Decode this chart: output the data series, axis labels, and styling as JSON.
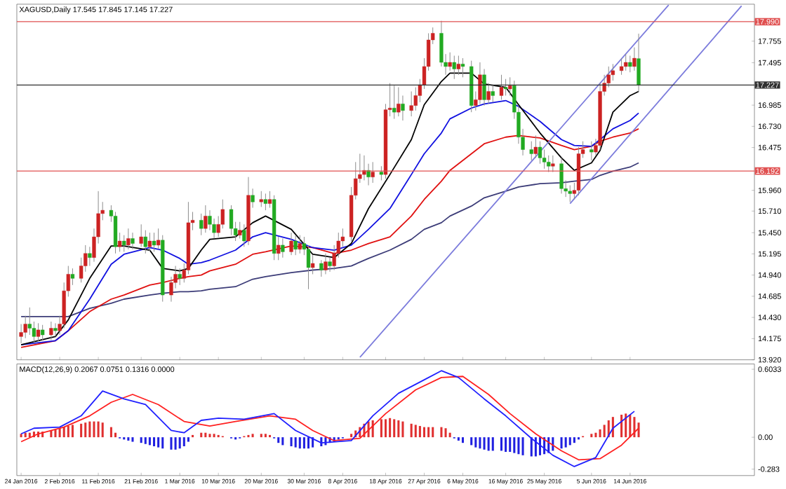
{
  "chart_data": [
    {
      "type": "candlestick",
      "title": "XAGUSD,Daily 17.545 17.845 17.145 17.227",
      "x": [
        "2016-01-24",
        "2016-01-25",
        "2016-01-26",
        "2016-01-27",
        "2016-01-28",
        "2016-01-29",
        "2016-01-31",
        "2016-02-01",
        "2016-02-02",
        "2016-02-03",
        "2016-02-04",
        "2016-02-05",
        "2016-02-07",
        "2016-02-08",
        "2016-02-09",
        "2016-02-10",
        "2016-02-11",
        "2016-02-12",
        "2016-02-14",
        "2016-02-15",
        "2016-02-16",
        "2016-02-17",
        "2016-02-18",
        "2016-02-19",
        "2016-02-21",
        "2016-02-22",
        "2016-02-23",
        "2016-02-24",
        "2016-02-25",
        "2016-02-26",
        "2016-02-28",
        "2016-02-29",
        "2016-03-01",
        "2016-03-02",
        "2016-03-03",
        "2016-03-04",
        "2016-03-06",
        "2016-03-07",
        "2016-03-08",
        "2016-03-09",
        "2016-03-10",
        "2016-03-11",
        "2016-03-13",
        "2016-03-14",
        "2016-03-15",
        "2016-03-16",
        "2016-03-17",
        "2016-03-18",
        "2016-03-20",
        "2016-03-21",
        "2016-03-22",
        "2016-03-23",
        "2016-03-24",
        "2016-03-25",
        "2016-03-27",
        "2016-03-28",
        "2016-03-29",
        "2016-03-30",
        "2016-03-31",
        "2016-04-01",
        "2016-04-03",
        "2016-04-04",
        "2016-04-05",
        "2016-04-06",
        "2016-04-07",
        "2016-04-08",
        "2016-04-10",
        "2016-04-11",
        "2016-04-12",
        "2016-04-13",
        "2016-04-14",
        "2016-04-15",
        "2016-04-17",
        "2016-04-18",
        "2016-04-19",
        "2016-04-20",
        "2016-04-21",
        "2016-04-22",
        "2016-04-24",
        "2016-04-25",
        "2016-04-26",
        "2016-04-27",
        "2016-04-28",
        "2016-04-29",
        "2016-05-01",
        "2016-05-02",
        "2016-05-03",
        "2016-05-04",
        "2016-05-05",
        "2016-05-06",
        "2016-05-08",
        "2016-05-09",
        "2016-05-10",
        "2016-05-11",
        "2016-05-12",
        "2016-05-13",
        "2016-05-15",
        "2016-05-16",
        "2016-05-17",
        "2016-05-18",
        "2016-05-19",
        "2016-05-20",
        "2016-05-22",
        "2016-05-23",
        "2016-05-24",
        "2016-05-25",
        "2016-05-26",
        "2016-05-27",
        "2016-05-29",
        "2016-05-30",
        "2016-05-31",
        "2016-06-01",
        "2016-06-02",
        "2016-06-03",
        "2016-06-05",
        "2016-06-06",
        "2016-06-07",
        "2016-06-08",
        "2016-06-09",
        "2016-06-10",
        "2016-06-12",
        "2016-06-13",
        "2016-06-14",
        "2016-06-15",
        "2016-06-16"
      ],
      "ohlc": [
        [
          14.2,
          14.35,
          14.12,
          14.25
        ],
        [
          14.25,
          14.45,
          14.18,
          14.35
        ],
        [
          14.35,
          14.55,
          14.22,
          14.3
        ],
        [
          14.3,
          14.38,
          14.12,
          14.2
        ],
        [
          14.2,
          14.36,
          14.14,
          14.28
        ],
        [
          14.28,
          14.34,
          14.15,
          14.22
        ],
        [
          14.22,
          14.38,
          14.16,
          14.3
        ],
        [
          14.3,
          14.36,
          14.2,
          14.27
        ],
        [
          14.27,
          14.45,
          14.22,
          14.35
        ],
        [
          14.35,
          14.85,
          14.3,
          14.75
        ],
        [
          14.75,
          15.05,
          14.68,
          14.95
        ],
        [
          14.95,
          15.02,
          14.82,
          14.9
        ],
        [
          14.9,
          15.15,
          14.85,
          15.05
        ],
        [
          15.05,
          15.3,
          14.98,
          15.2
        ],
        [
          15.2,
          15.28,
          15.05,
          15.15
        ],
        [
          15.15,
          15.5,
          15.1,
          15.4
        ],
        [
          15.4,
          15.95,
          15.32,
          15.68
        ],
        [
          15.68,
          15.82,
          15.6,
          15.72
        ],
        [
          15.72,
          15.78,
          15.58,
          15.65
        ],
        [
          15.65,
          15.7,
          15.2,
          15.28
        ],
        [
          15.28,
          15.45,
          15.22,
          15.35
        ],
        [
          15.35,
          15.42,
          15.22,
          15.3
        ],
        [
          15.3,
          15.5,
          15.25,
          15.38
        ],
        [
          15.38,
          15.45,
          15.25,
          15.32
        ],
        [
          15.32,
          15.55,
          15.28,
          15.4
        ],
        [
          15.4,
          15.48,
          15.2,
          15.28
        ],
        [
          15.28,
          15.45,
          15.22,
          15.35
        ],
        [
          15.35,
          15.45,
          15.22,
          15.3
        ],
        [
          15.3,
          15.5,
          15.25,
          15.36
        ],
        [
          15.36,
          15.42,
          14.62,
          14.7
        ],
        [
          14.7,
          14.92,
          14.62,
          14.85
        ],
        [
          14.85,
          15.05,
          14.78,
          14.95
        ],
        [
          14.95,
          15.02,
          14.82,
          14.9
        ],
        [
          14.9,
          15.08,
          14.85,
          15.0
        ],
        [
          15.0,
          15.82,
          14.95,
          15.57
        ],
        [
          15.57,
          15.7,
          15.48,
          15.6
        ],
        [
          15.6,
          15.68,
          15.42,
          15.5
        ],
        [
          15.5,
          15.78,
          15.45,
          15.65
        ],
        [
          15.65,
          15.72,
          15.48,
          15.55
        ],
        [
          15.55,
          15.62,
          15.38,
          15.45
        ],
        [
          15.45,
          15.65,
          15.4,
          15.55
        ],
        [
          15.55,
          15.85,
          15.5,
          15.73
        ],
        [
          15.73,
          15.78,
          15.42,
          15.5
        ],
        [
          15.5,
          15.58,
          15.35,
          15.42
        ],
        [
          15.42,
          15.58,
          15.38,
          15.48
        ],
        [
          15.48,
          15.55,
          15.28,
          15.35
        ],
        [
          15.35,
          16.12,
          15.3,
          15.9
        ],
        [
          15.9,
          15.98,
          15.75,
          15.82
        ],
        [
          15.82,
          15.95,
          15.76,
          15.85
        ],
        [
          15.85,
          15.92,
          15.72,
          15.8
        ],
        [
          15.8,
          15.95,
          15.75,
          15.85
        ],
        [
          15.85,
          15.9,
          15.12,
          15.2
        ],
        [
          15.2,
          15.4,
          15.12,
          15.3
        ],
        [
          15.3,
          15.38,
          15.15,
          15.22
        ],
        [
          15.22,
          15.45,
          15.18,
          15.35
        ],
        [
          15.35,
          15.42,
          15.18,
          15.25
        ],
        [
          15.25,
          15.42,
          15.2,
          15.32
        ],
        [
          15.32,
          15.4,
          15.18,
          15.25
        ],
        [
          15.25,
          15.3,
          14.77,
          15.03
        ],
        [
          15.03,
          15.18,
          14.95,
          15.08
        ],
        [
          15.08,
          15.12,
          14.92,
          15.0
        ],
        [
          15.0,
          15.2,
          14.95,
          15.1
        ],
        [
          15.1,
          15.15,
          14.98,
          15.05
        ],
        [
          15.05,
          15.3,
          15.0,
          15.2
        ],
        [
          15.2,
          15.45,
          15.15,
          15.35
        ],
        [
          15.35,
          15.5,
          15.28,
          15.4
        ],
        [
          15.4,
          16.0,
          15.35,
          15.9
        ],
        [
          15.9,
          16.3,
          15.85,
          16.1
        ],
        [
          16.1,
          16.4,
          16.05,
          16.15
        ],
        [
          16.15,
          16.38,
          16.08,
          16.2
        ],
        [
          16.2,
          16.28,
          16.02,
          16.12
        ],
        [
          16.12,
          16.3,
          16.05,
          16.18
        ],
        [
          16.18,
          16.25,
          16.08,
          16.15
        ],
        [
          16.15,
          17.0,
          16.1,
          16.93
        ],
        [
          16.93,
          17.25,
          16.85,
          16.95
        ],
        [
          16.95,
          17.22,
          16.82,
          16.9
        ],
        [
          16.9,
          17.2,
          16.85,
          17.0
        ],
        [
          17.0,
          17.1,
          16.8,
          16.92
        ],
        [
          16.92,
          17.15,
          16.85,
          16.98
        ],
        [
          16.98,
          17.2,
          16.92,
          17.1
        ],
        [
          17.1,
          17.3,
          17.02,
          17.23
        ],
        [
          17.23,
          17.55,
          17.18,
          17.45
        ],
        [
          17.45,
          17.85,
          17.4,
          17.77
        ],
        [
          17.77,
          17.92,
          17.72,
          17.85
        ],
        [
          17.85,
          18.0,
          17.45,
          17.5
        ],
        [
          17.5,
          17.6,
          17.35,
          17.45
        ],
        [
          17.45,
          17.62,
          17.4,
          17.5
        ],
        [
          17.5,
          17.58,
          17.3,
          17.42
        ],
        [
          17.42,
          17.58,
          17.35,
          17.48
        ],
        [
          17.48,
          17.55,
          17.32,
          17.45
        ],
        [
          17.45,
          17.52,
          16.9,
          16.98
        ],
        [
          16.98,
          17.15,
          16.92,
          17.05
        ],
        [
          17.05,
          17.5,
          17.0,
          17.35
        ],
        [
          17.35,
          17.42,
          16.98,
          17.05
        ],
        [
          17.05,
          17.25,
          17.0,
          17.15
        ],
        [
          17.15,
          17.22,
          17.02,
          17.1
        ],
        [
          17.1,
          17.35,
          17.05,
          17.2
        ],
        [
          17.2,
          17.3,
          17.1,
          17.18
        ],
        [
          17.18,
          17.32,
          17.1,
          17.22
        ],
        [
          17.22,
          17.28,
          16.82,
          16.9
        ],
        [
          16.9,
          16.98,
          16.52,
          16.6
        ],
        [
          16.6,
          16.7,
          16.38,
          16.45
        ],
        [
          16.45,
          16.55,
          16.32,
          16.4
        ],
        [
          16.4,
          16.62,
          16.35,
          16.48
        ],
        [
          16.48,
          16.55,
          16.28,
          16.35
        ],
        [
          16.35,
          16.45,
          16.22,
          16.3
        ],
        [
          16.3,
          16.38,
          16.18,
          16.25
        ],
        [
          16.25,
          16.38,
          16.18,
          16.28
        ],
        [
          16.28,
          16.35,
          15.92,
          15.98
        ],
        [
          15.98,
          16.08,
          15.88,
          15.95
        ],
        [
          15.95,
          16.02,
          15.82,
          15.92
        ],
        [
          15.92,
          16.05,
          15.85,
          15.96
        ],
        [
          15.96,
          16.48,
          15.9,
          16.4
        ],
        [
          16.4,
          16.55,
          16.35,
          16.45
        ],
        [
          16.45,
          16.55,
          16.32,
          16.42
        ],
        [
          16.42,
          16.58,
          16.38,
          16.5
        ],
        [
          16.5,
          17.25,
          16.45,
          17.15
        ],
        [
          17.15,
          17.35,
          17.1,
          17.25
        ],
        [
          17.25,
          17.45,
          17.2,
          17.35
        ],
        [
          17.35,
          17.48,
          17.28,
          17.4
        ],
        [
          17.4,
          17.55,
          17.35,
          17.45
        ],
        [
          17.45,
          17.6,
          17.4,
          17.5
        ],
        [
          17.5,
          17.58,
          17.38,
          17.45
        ],
        [
          17.45,
          17.68,
          17.4,
          17.55
        ],
        [
          17.545,
          17.845,
          17.145,
          17.227
        ]
      ],
      "colors": [
        "#cc2222",
        "#cc2222",
        "#22aa22",
        "#22aa22",
        "#cc2222",
        "#22aa22",
        "#cc2222",
        "#22aa22",
        "#cc2222",
        "#cc2222",
        "#cc2222",
        "#22aa22",
        "#cc2222",
        "#cc2222",
        "#22aa22",
        "#cc2222",
        "#cc2222",
        "#cc2222",
        "#22aa22",
        "#22aa22",
        "#cc2222",
        "#22aa22",
        "#cc2222",
        "#22aa22",
        "#cc2222",
        "#22aa22",
        "#cc2222",
        "#22aa22",
        "#cc2222",
        "#22aa22",
        "#cc2222",
        "#cc2222",
        "#22aa22",
        "#cc2222",
        "#cc2222",
        "#cc2222",
        "#22aa22",
        "#cc2222",
        "#22aa22",
        "#22aa22",
        "#cc2222",
        "#cc2222",
        "#22aa22",
        "#22aa22",
        "#cc2222",
        "#22aa22",
        "#cc2222",
        "#22aa22",
        "#cc2222",
        "#22aa22",
        "#cc2222",
        "#22aa22",
        "#cc2222",
        "#22aa22",
        "#cc2222",
        "#22aa22",
        "#cc2222",
        "#22aa22",
        "#22aa22",
        "#cc2222",
        "#22aa22",
        "#cc2222",
        "#22aa22",
        "#cc2222",
        "#cc2222",
        "#cc2222",
        "#cc2222",
        "#cc2222",
        "#cc2222",
        "#cc2222",
        "#22aa22",
        "#cc2222",
        "#22aa22",
        "#cc2222",
        "#cc2222",
        "#22aa22",
        "#cc2222",
        "#22aa22",
        "#cc2222",
        "#cc2222",
        "#cc2222",
        "#cc2222",
        "#cc2222",
        "#cc2222",
        "#22aa22",
        "#22aa22",
        "#cc2222",
        "#22aa22",
        "#cc2222",
        "#22aa22",
        "#22aa22",
        "#cc2222",
        "#cc2222",
        "#22aa22",
        "#cc2222",
        "#22aa22",
        "#cc2222",
        "#22aa22",
        "#cc2222",
        "#22aa22",
        "#22aa22",
        "#22aa22",
        "#22aa22",
        "#cc2222",
        "#22aa22",
        "#22aa22",
        "#22aa22",
        "#cc2222",
        "#22aa22",
        "#22aa22",
        "#22aa22",
        "#cc2222",
        "#cc2222",
        "#cc2222",
        "#22aa22",
        "#cc2222",
        "#cc2222",
        "#cc2222",
        "#cc2222",
        "#cc2222",
        "#cc2222",
        "#cc2222",
        "#22aa22",
        "#cc2222",
        "#22aa22"
      ],
      "series": [
        {
          "type": "line",
          "color": "#3c3c78",
          "x": [
            "2016-01-24",
            "2016-02-01",
            "2016-02-04",
            "2016-02-09",
            "2016-02-14",
            "2016-02-17",
            "2016-02-23",
            "2016-02-26",
            "2016-03-01",
            "2016-03-03",
            "2016-03-06",
            "2016-03-08",
            "2016-03-14",
            "2016-03-18",
            "2016-03-21",
            "2016-03-27",
            "2016-04-01",
            "2016-04-06",
            "2016-04-10",
            "2016-04-14",
            "2016-04-19",
            "2016-04-24",
            "2016-04-27",
            "2016-05-01",
            "2016-05-03",
            "2016-05-08",
            "2016-05-11",
            "2016-05-16",
            "2016-05-19",
            "2016-05-24",
            "2016-05-29",
            "2016-06-01",
            "2016-06-05",
            "2016-06-07",
            "2016-06-10",
            "2016-06-14",
            "2016-06-16"
          ],
          "values": [
            14.44,
            14.44,
            14.44,
            14.54,
            14.6,
            14.65,
            14.7,
            14.72,
            14.74,
            14.74,
            14.75,
            14.77,
            14.8,
            14.89,
            14.92,
            14.97,
            15.0,
            15.02,
            15.05,
            15.14,
            15.24,
            15.37,
            15.49,
            15.57,
            15.65,
            15.77,
            15.87,
            15.95,
            16.0,
            16.04,
            16.05,
            16.07,
            16.09,
            16.14,
            16.19,
            16.24,
            16.29
          ]
        },
        {
          "type": "line",
          "color": "#e01010",
          "x": [
            "2016-01-24",
            "2016-02-01",
            "2016-02-04",
            "2016-02-09",
            "2016-02-14",
            "2016-02-17",
            "2016-02-23",
            "2016-02-26",
            "2016-03-01",
            "2016-03-03",
            "2016-03-06",
            "2016-03-08",
            "2016-03-14",
            "2016-03-18",
            "2016-03-21",
            "2016-03-27",
            "2016-04-01",
            "2016-04-06",
            "2016-04-10",
            "2016-04-14",
            "2016-04-19",
            "2016-04-24",
            "2016-04-27",
            "2016-05-01",
            "2016-05-03",
            "2016-05-08",
            "2016-05-11",
            "2016-05-16",
            "2016-05-19",
            "2016-05-24",
            "2016-05-29",
            "2016-06-01",
            "2016-06-05",
            "2016-06-07",
            "2016-06-10",
            "2016-06-14",
            "2016-06-16"
          ],
          "values": [
            14.07,
            14.15,
            14.27,
            14.5,
            14.65,
            14.7,
            14.82,
            14.85,
            14.9,
            14.92,
            14.94,
            14.99,
            15.07,
            15.19,
            15.22,
            15.29,
            15.27,
            15.2,
            15.24,
            15.32,
            15.4,
            15.65,
            15.85,
            16.07,
            16.2,
            16.4,
            16.52,
            16.6,
            16.62,
            16.59,
            16.5,
            16.45,
            16.49,
            16.55,
            16.6,
            16.65,
            16.7
          ]
        },
        {
          "type": "line",
          "color": "#1010e0",
          "x": [
            "2016-01-24",
            "2016-02-01",
            "2016-02-04",
            "2016-02-09",
            "2016-02-14",
            "2016-02-17",
            "2016-02-23",
            "2016-02-26",
            "2016-03-01",
            "2016-03-03",
            "2016-03-06",
            "2016-03-08",
            "2016-03-14",
            "2016-03-18",
            "2016-03-21",
            "2016-03-27",
            "2016-04-01",
            "2016-04-06",
            "2016-04-10",
            "2016-04-14",
            "2016-04-19",
            "2016-04-24",
            "2016-04-27",
            "2016-05-01",
            "2016-05-03",
            "2016-05-08",
            "2016-05-11",
            "2016-05-16",
            "2016-05-19",
            "2016-05-24",
            "2016-05-29",
            "2016-06-01",
            "2016-06-05",
            "2016-06-07",
            "2016-06-10",
            "2016-06-14",
            "2016-06-16"
          ],
          "values": [
            14.1,
            14.15,
            14.27,
            14.65,
            15.07,
            15.19,
            15.27,
            15.24,
            15.14,
            15.07,
            15.09,
            15.12,
            15.24,
            15.4,
            15.45,
            15.37,
            15.27,
            15.24,
            15.3,
            15.49,
            15.74,
            16.15,
            16.4,
            16.65,
            16.82,
            16.95,
            17.0,
            17.04,
            16.97,
            16.79,
            16.57,
            16.5,
            16.49,
            16.57,
            16.7,
            16.8,
            16.89
          ]
        },
        {
          "type": "line",
          "color": "#000000",
          "x": [
            "2016-01-24",
            "2016-02-01",
            "2016-02-04",
            "2016-02-09",
            "2016-02-14",
            "2016-02-17",
            "2016-02-23",
            "2016-02-26",
            "2016-03-01",
            "2016-03-03",
            "2016-03-06",
            "2016-03-08",
            "2016-03-14",
            "2016-03-18",
            "2016-03-21",
            "2016-03-27",
            "2016-04-01",
            "2016-04-06",
            "2016-04-10",
            "2016-04-14",
            "2016-04-19",
            "2016-04-24",
            "2016-04-27",
            "2016-05-01",
            "2016-05-03",
            "2016-05-08",
            "2016-05-11",
            "2016-05-16",
            "2016-05-19",
            "2016-05-24",
            "2016-05-29",
            "2016-06-01",
            "2016-06-05",
            "2016-06-07",
            "2016-06-10",
            "2016-06-14",
            "2016-06-16"
          ],
          "values": [
            14.1,
            14.2,
            14.4,
            14.9,
            15.29,
            15.29,
            15.24,
            15.02,
            14.99,
            15.02,
            15.24,
            15.37,
            15.4,
            15.57,
            15.65,
            15.49,
            15.19,
            15.15,
            15.32,
            15.74,
            16.15,
            16.57,
            16.99,
            17.27,
            17.37,
            17.37,
            17.24,
            17.2,
            16.99,
            16.65,
            16.35,
            16.2,
            16.29,
            16.44,
            16.9,
            17.1,
            17.15
          ]
        },
        {
          "type": "line",
          "color": "#7b7bdc",
          "x": [
            "2016-04-12",
            "2016-06-23"
          ],
          "values": [
            13.95,
            18.19
          ]
        },
        {
          "type": "line",
          "color": "#7b7bdc",
          "x": [
            "2016-05-31",
            "2016-07-10"
          ],
          "values": [
            15.8,
            18.18
          ]
        }
      ],
      "ref_lines": [
        {
          "axis": "y",
          "value": 17.99,
          "label": "17.990",
          "color": "#e05050"
        },
        {
          "axis": "y",
          "value": 17.227,
          "label": "17.227",
          "color": "#303030"
        },
        {
          "axis": "y",
          "value": 16.192,
          "label": "16.192",
          "color": "#e05050"
        }
      ],
      "xlim": [
        "2016-01-23",
        "2016-07-13"
      ],
      "xticks": [
        {
          "value": "2016-01-24",
          "label": null
        },
        {
          "value": "2016-02-02",
          "label": null
        },
        {
          "value": "2016-02-11",
          "label": null
        },
        {
          "value": "2016-02-21",
          "label": null
        },
        {
          "value": "2016-03-01",
          "label": null
        },
        {
          "value": "2016-03-10",
          "label": null
        },
        {
          "value": "2016-03-20",
          "label": null
        },
        {
          "value": "2016-03-30",
          "label": null
        },
        {
          "value": "2016-04-08",
          "label": null
        },
        {
          "value": "2016-04-18",
          "label": null
        },
        {
          "value": "2016-04-27",
          "label": null
        },
        {
          "value": "2016-05-06",
          "label": null
        },
        {
          "value": "2016-05-16",
          "label": null
        },
        {
          "value": "2016-05-25",
          "label": null
        },
        {
          "value": "2016-06-05",
          "label": null
        },
        {
          "value": "2016-06-14",
          "label": null
        }
      ],
      "ylim": [
        13.92,
        18.2
      ],
      "yticks": [
        {
          "value": 13.92,
          "label": "13.920"
        },
        14.175,
        {
          "value": 14.43,
          "label": "14.430"
        },
        14.685,
        {
          "value": 14.94,
          "label": "14.940"
        },
        15.195,
        {
          "value": 15.45,
          "label": "15.450"
        },
        {
          "value": 15.71,
          "label": "15.710"
        },
        {
          "value": 15.96,
          "label": "15.960"
        },
        16.475,
        {
          "value": 16.73,
          "label": "16.730"
        },
        16.985,
        17.495,
        17.755
      ],
      "tick_labels": "y"
    },
    {
      "type": "bar",
      "title": "MACD(12,26,9) 0.2067 0.0751 0.1316 0.0000",
      "x": [
        "2016-01-24",
        "2016-01-25",
        "2016-01-26",
        "2016-01-27",
        "2016-01-28",
        "2016-01-29",
        "2016-01-31",
        "2016-02-01",
        "2016-02-02",
        "2016-02-03",
        "2016-02-04",
        "2016-02-05",
        "2016-02-07",
        "2016-02-08",
        "2016-02-09",
        "2016-02-10",
        "2016-02-11",
        "2016-02-12",
        "2016-02-14",
        "2016-02-15",
        "2016-02-16",
        "2016-02-17",
        "2016-02-18",
        "2016-02-19",
        "2016-02-21",
        "2016-02-22",
        "2016-02-23",
        "2016-02-24",
        "2016-02-25",
        "2016-02-26",
        "2016-02-28",
        "2016-02-29",
        "2016-03-01",
        "2016-03-02",
        "2016-03-03",
        "2016-03-04",
        "2016-03-06",
        "2016-03-07",
        "2016-03-08",
        "2016-03-09",
        "2016-03-10",
        "2016-03-11",
        "2016-03-13",
        "2016-03-14",
        "2016-03-15",
        "2016-03-16",
        "2016-03-17",
        "2016-03-18",
        "2016-03-20",
        "2016-03-21",
        "2016-03-22",
        "2016-03-23",
        "2016-03-24",
        "2016-03-25",
        "2016-03-27",
        "2016-03-28",
        "2016-03-29",
        "2016-03-30",
        "2016-03-31",
        "2016-04-01",
        "2016-04-03",
        "2016-04-04",
        "2016-04-05",
        "2016-04-06",
        "2016-04-07",
        "2016-04-08",
        "2016-04-10",
        "2016-04-11",
        "2016-04-12",
        "2016-04-13",
        "2016-04-14",
        "2016-04-15",
        "2016-04-17",
        "2016-04-18",
        "2016-04-19",
        "2016-04-20",
        "2016-04-21",
        "2016-04-22",
        "2016-04-24",
        "2016-04-25",
        "2016-04-26",
        "2016-04-27",
        "2016-04-28",
        "2016-04-29",
        "2016-05-01",
        "2016-05-02",
        "2016-05-03",
        "2016-05-04",
        "2016-05-05",
        "2016-05-06",
        "2016-05-08",
        "2016-05-09",
        "2016-05-10",
        "2016-05-11",
        "2016-05-12",
        "2016-05-13",
        "2016-05-15",
        "2016-05-16",
        "2016-05-17",
        "2016-05-18",
        "2016-05-19",
        "2016-05-20",
        "2016-05-22",
        "2016-05-23",
        "2016-05-24",
        "2016-05-25",
        "2016-05-26",
        "2016-05-27",
        "2016-05-29",
        "2016-05-30",
        "2016-05-31",
        "2016-06-01",
        "2016-06-02",
        "2016-06-03",
        "2016-06-05",
        "2016-06-06",
        "2016-06-07",
        "2016-06-08",
        "2016-06-09",
        "2016-06-10",
        "2016-06-12",
        "2016-06-13",
        "2016-06-14",
        "2016-06-15",
        "2016-06-16"
      ],
      "series": [
        {
          "type": "bar",
          "values": [
            0.03,
            0.04,
            0.04,
            0.05,
            0.05,
            0.05,
            0.06,
            0.07,
            0.08,
            0.09,
            0.1,
            0.11,
            0.12,
            0.13,
            0.14,
            0.14,
            0.14,
            0.13,
            0.09,
            0.04,
            -0.01,
            -0.02,
            -0.03,
            -0.04,
            -0.05,
            -0.06,
            -0.07,
            -0.08,
            -0.09,
            -0.1,
            -0.11,
            -0.11,
            -0.1,
            -0.08,
            -0.04,
            0.02,
            0.04,
            0.04,
            0.03,
            0.03,
            0.02,
            0.01,
            -0.01,
            -0.02,
            -0.01,
            0.01,
            0.02,
            0.03,
            0.03,
            0.03,
            0.02,
            -0.01,
            -0.05,
            -0.07,
            -0.08,
            -0.09,
            -0.1,
            -0.1,
            -0.1,
            -0.09,
            -0.08,
            -0.07,
            -0.05,
            -0.04,
            -0.02,
            -0.01,
            0.03,
            0.06,
            0.09,
            0.12,
            0.14,
            0.15,
            0.16,
            0.16,
            0.17,
            0.16,
            0.15,
            0.14,
            0.12,
            0.11,
            0.1,
            0.09,
            0.09,
            0.09,
            0.09,
            0.08,
            0.04,
            -0.01,
            -0.03,
            -0.05,
            -0.07,
            -0.09,
            -0.1,
            -0.11,
            -0.12,
            -0.12,
            -0.12,
            -0.13,
            -0.13,
            -0.14,
            -0.15,
            -0.16,
            -0.17,
            -0.17,
            -0.16,
            -0.15,
            -0.14,
            -0.12,
            -0.1,
            -0.09,
            -0.07,
            -0.05,
            -0.02,
            0.01,
            0.03,
            0.04,
            0.07,
            0.11,
            0.15,
            0.18,
            0.2,
            0.21,
            0.2,
            0.18,
            0.13
          ],
          "colors": [
            "#e03030",
            "#e03030",
            "#e03030",
            "#e03030",
            "#e03030",
            "#e03030",
            "#e03030",
            "#e03030",
            "#e03030",
            "#e03030",
            "#e03030",
            "#e03030",
            "#e03030",
            "#e03030",
            "#e03030",
            "#e03030",
            "#e03030",
            "#e03030",
            "#e03030",
            "#e03030",
            "#2020e0",
            "#2020e0",
            "#2020e0",
            "#2020e0",
            "#2020e0",
            "#2020e0",
            "#2020e0",
            "#2020e0",
            "#2020e0",
            "#2020e0",
            "#2020e0",
            "#2020e0",
            "#2020e0",
            "#2020e0",
            "#2020e0",
            "#e03030",
            "#e03030",
            "#e03030",
            "#e03030",
            "#e03030",
            "#e03030",
            "#e03030",
            "#2020e0",
            "#2020e0",
            "#2020e0",
            "#e03030",
            "#e03030",
            "#e03030",
            "#e03030",
            "#e03030",
            "#e03030",
            "#2020e0",
            "#2020e0",
            "#2020e0",
            "#2020e0",
            "#2020e0",
            "#2020e0",
            "#2020e0",
            "#2020e0",
            "#2020e0",
            "#2020e0",
            "#2020e0",
            "#2020e0",
            "#2020e0",
            "#2020e0",
            "#2020e0",
            "#e03030",
            "#e03030",
            "#e03030",
            "#e03030",
            "#e03030",
            "#e03030",
            "#e03030",
            "#e03030",
            "#e03030",
            "#e03030",
            "#e03030",
            "#e03030",
            "#e03030",
            "#e03030",
            "#e03030",
            "#e03030",
            "#e03030",
            "#e03030",
            "#e03030",
            "#e03030",
            "#e03030",
            "#2020e0",
            "#2020e0",
            "#2020e0",
            "#2020e0",
            "#2020e0",
            "#2020e0",
            "#2020e0",
            "#2020e0",
            "#2020e0",
            "#2020e0",
            "#2020e0",
            "#2020e0",
            "#2020e0",
            "#2020e0",
            "#2020e0",
            "#2020e0",
            "#2020e0",
            "#2020e0",
            "#2020e0",
            "#2020e0",
            "#2020e0",
            "#2020e0",
            "#2020e0",
            "#2020e0",
            "#2020e0",
            "#2020e0",
            "#e03030",
            "#e03030",
            "#e03030",
            "#e03030",
            "#e03030",
            "#e03030",
            "#e03030",
            "#e03030",
            "#e03030",
            "#e03030",
            "#e03030",
            "#e03030"
          ]
        },
        {
          "type": "line",
          "color": "#ff2020",
          "x": [
            "2016-01-24",
            "2016-01-28",
            "2016-02-03",
            "2016-02-09",
            "2016-02-14",
            "2016-02-19",
            "2016-02-25",
            "2016-03-02",
            "2016-03-08",
            "2016-03-14",
            "2016-03-22",
            "2016-03-28",
            "2016-04-01",
            "2016-04-06",
            "2016-04-12",
            "2016-04-18",
            "2016-04-25",
            "2016-05-01",
            "2016-05-06",
            "2016-05-12",
            "2016-05-17",
            "2016-05-23",
            "2016-05-29",
            "2016-06-02",
            "2016-06-07",
            "2016-06-12",
            "2016-06-16"
          ],
          "values": [
            -0.04,
            0.03,
            0.09,
            0.19,
            0.31,
            0.38,
            0.29,
            0.14,
            0.1,
            0.14,
            0.19,
            0.16,
            0.06,
            -0.03,
            -0.01,
            0.21,
            0.42,
            0.53,
            0.54,
            0.38,
            0.21,
            0.03,
            -0.12,
            -0.2,
            -0.19,
            -0.07,
            0.08
          ]
        },
        {
          "type": "line",
          "color": "#2020ff",
          "x": [
            "2016-01-24",
            "2016-01-27",
            "2016-02-02",
            "2016-02-07",
            "2016-02-12",
            "2016-02-17",
            "2016-02-22",
            "2016-02-28",
            "2016-03-02",
            "2016-03-06",
            "2016-03-10",
            "2016-03-16",
            "2016-03-23",
            "2016-03-28",
            "2016-04-03",
            "2016-04-10",
            "2016-04-15",
            "2016-04-21",
            "2016-04-27",
            "2016-05-01",
            "2016-05-05",
            "2016-05-11",
            "2016-05-16",
            "2016-05-22",
            "2016-05-27",
            "2016-06-01",
            "2016-06-06",
            "2016-06-10",
            "2016-06-15"
          ],
          "values": [
            0.03,
            0.08,
            0.09,
            0.19,
            0.41,
            0.34,
            0.29,
            0.06,
            0.04,
            0.15,
            0.17,
            0.16,
            0.21,
            0.06,
            -0.05,
            -0.03,
            0.19,
            0.39,
            0.51,
            0.59,
            0.53,
            0.34,
            0.19,
            -0.01,
            -0.16,
            -0.26,
            -0.18,
            0.08,
            0.23
          ]
        }
      ],
      "xlim": [
        "2016-01-23",
        "2016-07-13"
      ],
      "xticks": [
        {
          "value": "2016-01-24",
          "label": "24 Jan 2016"
        },
        {
          "value": "2016-02-02",
          "label": "2 Feb 2016"
        },
        {
          "value": "2016-02-11",
          "label": "11 Feb 2016"
        },
        {
          "value": "2016-02-21",
          "label": "21 Feb 2016"
        },
        {
          "value": "2016-03-01",
          "label": "1 Mar 2016"
        },
        {
          "value": "2016-03-10",
          "label": "10 Mar 2016"
        },
        {
          "value": "2016-03-20",
          "label": "20 Mar 2016"
        },
        {
          "value": "2016-03-30",
          "label": "30 Mar 2016"
        },
        {
          "value": "2016-04-08",
          "label": "8 Apr 2016"
        },
        {
          "value": "2016-04-18",
          "label": "18 Apr 2016"
        },
        {
          "value": "2016-04-27",
          "label": "27 Apr 2016"
        },
        {
          "value": "2016-05-06",
          "label": "6 May 2016"
        },
        {
          "value": "2016-05-16",
          "label": "16 May 2016"
        },
        {
          "value": "2016-05-25",
          "label": "25 May 2016"
        },
        {
          "value": "2016-06-05",
          "label": "5 Jun 2016"
        },
        {
          "value": "2016-06-14",
          "label": "14 Jun 2016"
        }
      ],
      "ylim": [
        -0.34,
        0.65
      ],
      "yticks": [
        {
          "value": -0.283,
          "label": "-0.283"
        },
        {
          "value": 0,
          "label": "0.00"
        },
        {
          "value": 0.6033,
          "label": "0.6033"
        }
      ]
    }
  ]
}
